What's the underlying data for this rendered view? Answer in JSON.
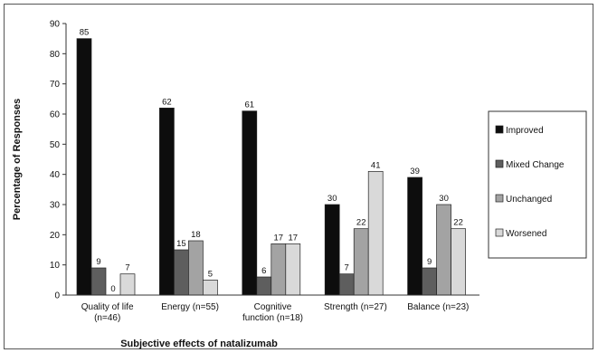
{
  "chart_data": {
    "type": "bar",
    "title": "",
    "xlabel": "Subjective effects of natalizumab",
    "ylabel": "Percentage of Responses",
    "ylim": [
      0,
      90
    ],
    "yticks": [
      0,
      10,
      20,
      30,
      40,
      50,
      60,
      70,
      80,
      90
    ],
    "categories": [
      [
        "Quality of life",
        "(n=46)"
      ],
      [
        "Energy (n=55)"
      ],
      [
        "Cognitive",
        "function (n=18)"
      ],
      [
        "Strength (n=27)"
      ],
      [
        "Balance (n=23)"
      ]
    ],
    "series": [
      {
        "name": "Improved",
        "values": [
          85,
          62,
          61,
          30,
          39
        ],
        "color": "#0d0d0d"
      },
      {
        "name": "Mixed Change",
        "values": [
          9,
          15,
          6,
          7,
          9
        ],
        "color": "#5e5e5e"
      },
      {
        "name": "Unchanged",
        "values": [
          0,
          18,
          17,
          22,
          30
        ],
        "color": "#a3a3a3"
      },
      {
        "name": "Worsened",
        "values": [
          7,
          5,
          17,
          41,
          22
        ],
        "color": "#d9d9d9"
      }
    ],
    "legend_position": "right",
    "grid": false
  }
}
